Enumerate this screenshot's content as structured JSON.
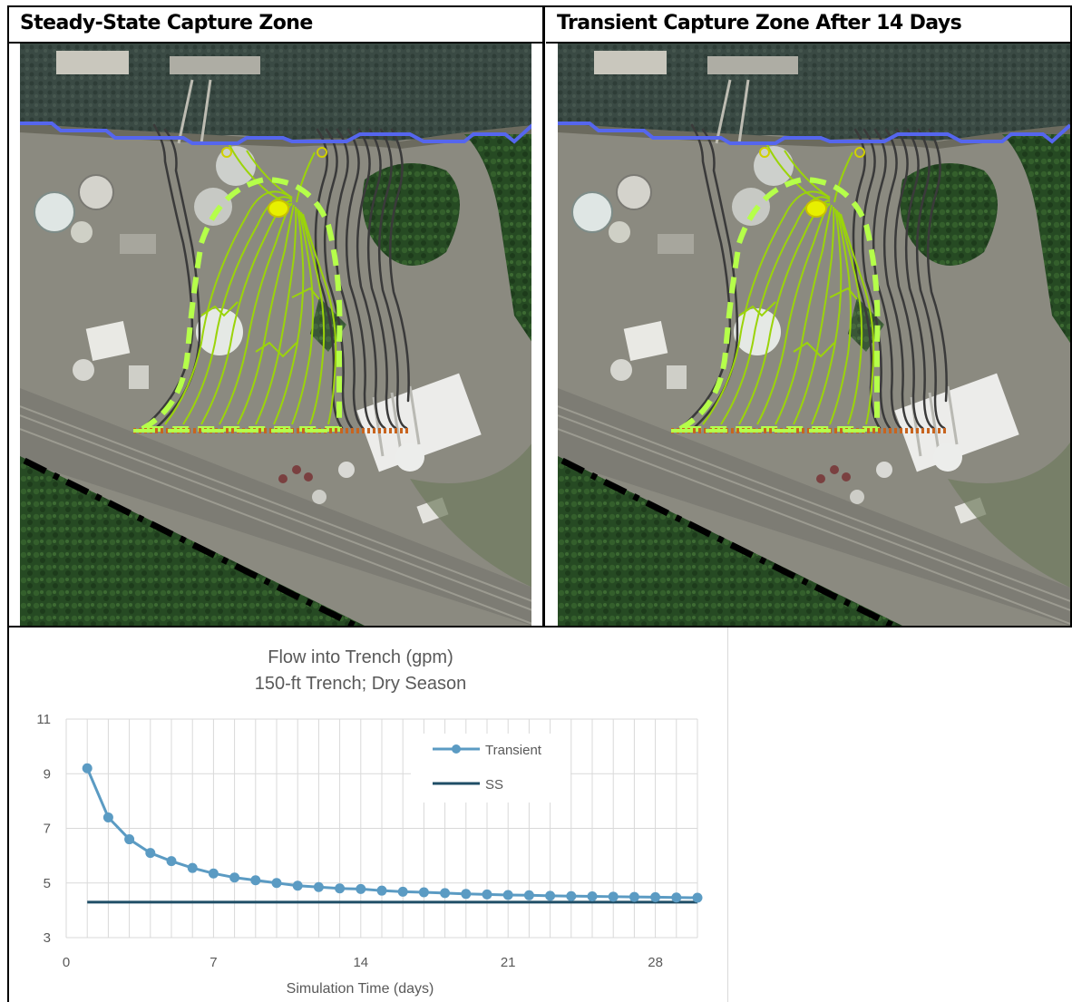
{
  "panels": {
    "left_title": "Steady-State Capture Zone",
    "right_title": "Transient Capture Zone After 14 Days"
  },
  "colors": {
    "river_line": "#5566ee",
    "capture_zone": "#b5ff4a",
    "flowlines_captured": "#9bd40a",
    "flowlines_bypass": "#3a3a3a",
    "trench": "#c8641e",
    "boundary": "#000000",
    "transient_series": "#5b9bc3",
    "ss_series": "#1f4e66"
  },
  "chart_data": {
    "type": "line",
    "title": "Flow into Trench (gpm)",
    "subtitle": "150-ft Trench; Dry Season",
    "xlabel": "Simulation Time (days)",
    "ylabel": "",
    "xlim": [
      0,
      30
    ],
    "ylim": [
      3,
      11
    ],
    "x_ticks": [
      0,
      7,
      14,
      21,
      28
    ],
    "y_ticks": [
      3,
      5,
      7,
      9,
      11
    ],
    "grid": true,
    "legend_position": "top-right",
    "series": [
      {
        "name": "Transient",
        "marker": "circle",
        "x": [
          1,
          2,
          3,
          4,
          5,
          6,
          7,
          8,
          9,
          10,
          11,
          12,
          13,
          14,
          15,
          16,
          17,
          18,
          19,
          20,
          21,
          22,
          23,
          24,
          25,
          26,
          27,
          28,
          29,
          30
        ],
        "values": [
          9.2,
          7.4,
          6.6,
          6.1,
          5.8,
          5.55,
          5.35,
          5.2,
          5.1,
          5.0,
          4.9,
          4.85,
          4.8,
          4.78,
          4.72,
          4.68,
          4.66,
          4.63,
          4.6,
          4.58,
          4.56,
          4.55,
          4.53,
          4.52,
          4.51,
          4.5,
          4.49,
          4.48,
          4.47,
          4.46
        ]
      },
      {
        "name": "SS",
        "marker": "none",
        "x": [
          1,
          30
        ],
        "values": [
          4.3,
          4.3
        ]
      }
    ]
  }
}
